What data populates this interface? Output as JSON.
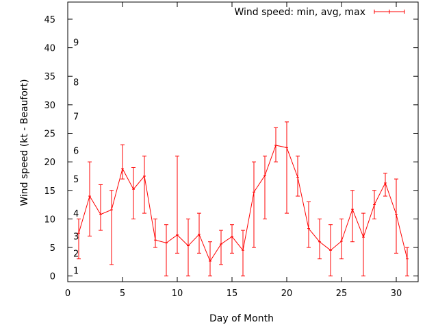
{
  "chart_data": {
    "type": "line",
    "title": "",
    "xlabel": "Day of Month",
    "ylabel": "Wind speed (kt - Beaufort)",
    "xlim": [
      0,
      32
    ],
    "ylim": [
      -1,
      48
    ],
    "x_ticks": [
      0,
      5,
      10,
      15,
      20,
      25,
      30
    ],
    "y_ticks": [
      0,
      5,
      10,
      15,
      20,
      25,
      30,
      35,
      40,
      45
    ],
    "grid": false,
    "legend_position": "top-right",
    "series": [
      {
        "name": "Wind speed: min, avg, max",
        "color": "#ff0000",
        "x": [
          1,
          2,
          3,
          4,
          5,
          6,
          7,
          8,
          9,
          10,
          11,
          12,
          13,
          14,
          15,
          16,
          17,
          18,
          19,
          20,
          21,
          22,
          23,
          24,
          25,
          26,
          27,
          28,
          29,
          30,
          31
        ],
        "avg": [
          7.5,
          14,
          10.8,
          11.6,
          18.8,
          15.2,
          17.5,
          6.3,
          5.8,
          7.2,
          5.3,
          7.3,
          2.6,
          5.6,
          6.9,
          4.5,
          14.7,
          17.6,
          22.9,
          22.5,
          17.3,
          8.3,
          6.0,
          4.5,
          6.1,
          11.7,
          6.8,
          12.5,
          16.3,
          10.8,
          3.0
        ],
        "min": [
          3,
          7,
          8,
          2,
          17,
          10,
          11,
          5,
          0,
          4,
          0,
          4,
          0,
          2,
          4,
          0,
          5,
          10,
          20,
          11,
          14,
          5,
          3,
          0,
          3,
          6,
          0,
          10,
          14,
          4,
          0
        ],
        "max": [
          10,
          20,
          16,
          15,
          23,
          19,
          21,
          10,
          9,
          21,
          10,
          11,
          6,
          8,
          9,
          8,
          20,
          21,
          26,
          27,
          21,
          13,
          10,
          9,
          10,
          15,
          11,
          15,
          18,
          17,
          5
        ]
      }
    ],
    "beaufort_labels": [
      {
        "label": "1",
        "y": 1
      },
      {
        "label": "2",
        "y": 4
      },
      {
        "label": "3",
        "y": 7
      },
      {
        "label": "4",
        "y": 11
      },
      {
        "label": "5",
        "y": 17
      },
      {
        "label": "6",
        "y": 22
      },
      {
        "label": "7",
        "y": 28
      },
      {
        "label": "8",
        "y": 34
      },
      {
        "label": "9",
        "y": 41
      }
    ]
  }
}
